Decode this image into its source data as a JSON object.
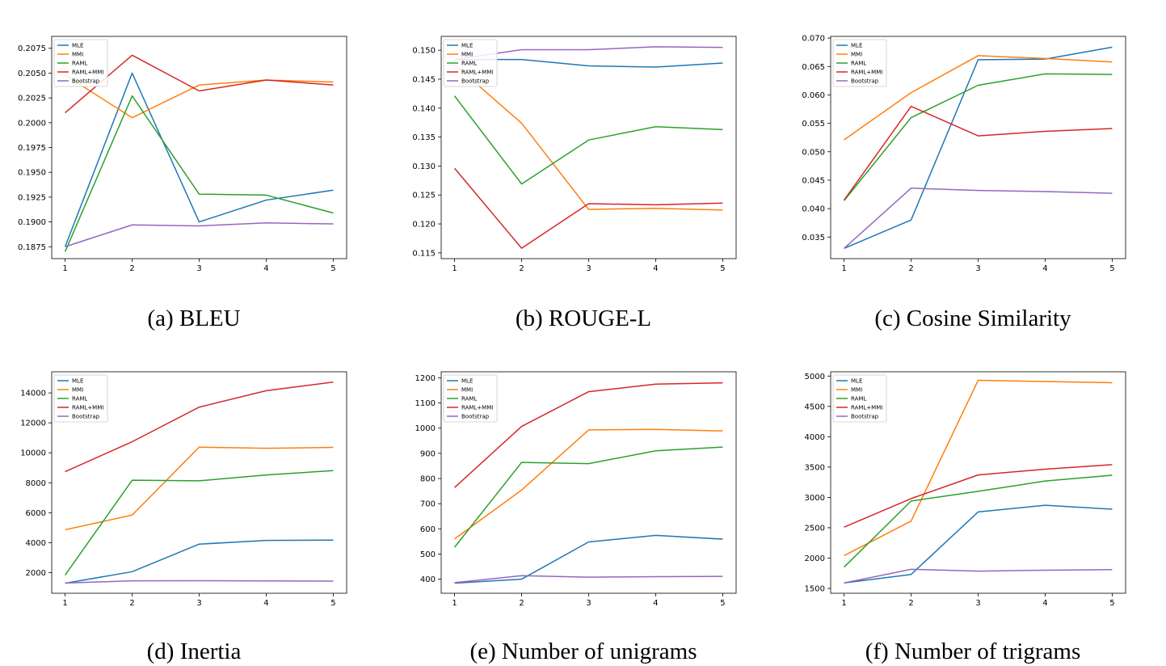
{
  "colors": {
    "MLE": "#1f77b4",
    "MMI": "#ff7f0e",
    "RAML": "#2ca02c",
    "RAML+MMI": "#d62728",
    "Bootstrap": "#9467bd"
  },
  "chart_data": [
    {
      "type": "line",
      "caption": "(a) BLEU",
      "x": [
        1,
        2,
        3,
        4,
        5
      ],
      "xticks": [
        "1",
        "2",
        "3",
        "4",
        "5"
      ],
      "ylim": [
        0.1863,
        0.2087
      ],
      "yticks": [
        0.1875,
        0.19,
        0.1925,
        0.195,
        0.1975,
        0.2,
        0.2025,
        0.205,
        0.2075
      ],
      "yticklabels": [
        "0.1875",
        "0.1900",
        "0.1925",
        "0.1950",
        "0.1975",
        "0.2000",
        "0.2025",
        "0.2050",
        "0.2075"
      ],
      "legend": "top-left",
      "series": [
        {
          "name": "MLE",
          "values": [
            0.1875,
            0.205,
            0.19,
            0.1922,
            0.1932
          ]
        },
        {
          "name": "MMI",
          "values": [
            0.2048,
            0.2005,
            0.2038,
            0.2043,
            0.2041
          ]
        },
        {
          "name": "RAML",
          "values": [
            0.187,
            0.2027,
            0.1928,
            0.1927,
            0.1909
          ]
        },
        {
          "name": "RAML+MMI",
          "values": [
            0.201,
            0.2068,
            0.2032,
            0.2043,
            0.2038
          ]
        },
        {
          "name": "Bootstrap",
          "values": [
            0.1875,
            0.1897,
            0.1896,
            0.1899,
            0.1898
          ]
        }
      ]
    },
    {
      "type": "line",
      "caption": "(b) ROUGE-L",
      "x": [
        1,
        2,
        3,
        4,
        5
      ],
      "xticks": [
        "1",
        "2",
        "3",
        "4",
        "5"
      ],
      "ylim": [
        0.114,
        0.1524
      ],
      "yticks": [
        0.115,
        0.12,
        0.125,
        0.13,
        0.135,
        0.14,
        0.145,
        0.15
      ],
      "yticklabels": [
        "0.115",
        "0.120",
        "0.125",
        "0.130",
        "0.135",
        "0.140",
        "0.145",
        "0.150"
      ],
      "legend": "top-left",
      "series": [
        {
          "name": "MLE",
          "values": [
            0.1484,
            0.1484,
            0.1473,
            0.1471,
            0.1478
          ]
        },
        {
          "name": "MMI",
          "values": [
            0.1475,
            0.1374,
            0.1225,
            0.1227,
            0.1224
          ]
        },
        {
          "name": "RAML",
          "values": [
            0.1421,
            0.1269,
            0.1345,
            0.1368,
            0.1363
          ]
        },
        {
          "name": "RAML+MMI",
          "values": [
            0.1296,
            0.1158,
            0.1235,
            0.1233,
            0.1236
          ]
        },
        {
          "name": "Bootstrap",
          "values": [
            0.1484,
            0.1501,
            0.1501,
            0.1506,
            0.1505
          ]
        }
      ]
    },
    {
      "type": "line",
      "caption": "(c) Cosine Similarity",
      "x": [
        1,
        2,
        3,
        4,
        5
      ],
      "xticks": [
        "1",
        "2",
        "3",
        "4",
        "5"
      ],
      "ylim": [
        0.0312,
        0.0703
      ],
      "yticks": [
        0.035,
        0.04,
        0.045,
        0.05,
        0.055,
        0.06,
        0.065,
        0.07
      ],
      "yticklabels": [
        "0.035",
        "0.040",
        "0.045",
        "0.050",
        "0.055",
        "0.060",
        "0.065",
        "0.070"
      ],
      "legend": "top-left",
      "series": [
        {
          "name": "MLE",
          "values": [
            0.033,
            0.038,
            0.0662,
            0.0663,
            0.0684
          ]
        },
        {
          "name": "MMI",
          "values": [
            0.0521,
            0.0604,
            0.0669,
            0.0664,
            0.0658
          ]
        },
        {
          "name": "RAML",
          "values": [
            0.0414,
            0.056,
            0.0617,
            0.0637,
            0.0636
          ]
        },
        {
          "name": "RAML+MMI",
          "values": [
            0.0415,
            0.058,
            0.0528,
            0.0536,
            0.0541
          ]
        },
        {
          "name": "Bootstrap",
          "values": [
            0.033,
            0.0436,
            0.0432,
            0.043,
            0.0427
          ]
        }
      ]
    },
    {
      "type": "line",
      "caption": "(d) Inertia",
      "x": [
        1,
        2,
        3,
        4,
        5
      ],
      "xticks": [
        "1",
        "2",
        "3",
        "4",
        "5"
      ],
      "ylim": [
        620,
        15410
      ],
      "yticks": [
        2000,
        4000,
        6000,
        8000,
        10000,
        12000,
        14000
      ],
      "yticklabels": [
        "2000",
        "4000",
        "6000",
        "8000",
        "10000",
        "12000",
        "14000"
      ],
      "legend": "top-left",
      "series": [
        {
          "name": "MLE",
          "values": [
            1290,
            2060,
            3900,
            4150,
            4170
          ]
        },
        {
          "name": "MMI",
          "values": [
            4860,
            5840,
            10380,
            10300,
            10360
          ]
        },
        {
          "name": "RAML",
          "values": [
            1830,
            8170,
            8130,
            8520,
            8810
          ]
        },
        {
          "name": "RAML+MMI",
          "values": [
            8740,
            10740,
            13050,
            14150,
            14720
          ]
        },
        {
          "name": "Bootstrap",
          "values": [
            1300,
            1450,
            1460,
            1440,
            1430
          ]
        }
      ]
    },
    {
      "type": "line",
      "caption": "(e) Number of unigrams",
      "x": [
        1,
        2,
        3,
        4,
        5
      ],
      "xticks": [
        "1",
        "2",
        "3",
        "4",
        "5"
      ],
      "ylim": [
        344,
        1224
      ],
      "yticks": [
        400,
        500,
        600,
        700,
        800,
        900,
        1000,
        1100,
        1200
      ],
      "yticklabels": [
        "400",
        "500",
        "600",
        "700",
        "800",
        "900",
        "1000",
        "1100",
        "1200"
      ],
      "legend": "top-left",
      "series": [
        {
          "name": "MLE",
          "values": [
            384,
            400,
            548,
            574,
            559
          ]
        },
        {
          "name": "MMI",
          "values": [
            560,
            754,
            993,
            995,
            989
          ]
        },
        {
          "name": "RAML",
          "values": [
            527,
            864,
            859,
            910,
            925
          ]
        },
        {
          "name": "RAML+MMI",
          "values": [
            764,
            1007,
            1145,
            1175,
            1180
          ]
        },
        {
          "name": "Bootstrap",
          "values": [
            386,
            414,
            408,
            410,
            411
          ]
        }
      ]
    },
    {
      "type": "line",
      "caption": "(f) Number of trigrams",
      "x": [
        1,
        2,
        3,
        4,
        5
      ],
      "xticks": [
        "1",
        "2",
        "3",
        "4",
        "5"
      ],
      "ylim": [
        1420,
        5070
      ],
      "yticks": [
        1500,
        2000,
        2500,
        3000,
        3500,
        4000,
        4500,
        5000
      ],
      "yticklabels": [
        "1500",
        "2000",
        "2500",
        "3000",
        "3500",
        "4000",
        "4500",
        "5000"
      ],
      "legend": "top-left",
      "series": [
        {
          "name": "MLE",
          "values": [
            1590,
            1730,
            2760,
            2870,
            2805
          ]
        },
        {
          "name": "MMI",
          "values": [
            2040,
            2610,
            4930,
            4910,
            4890
          ]
        },
        {
          "name": "RAML",
          "values": [
            1850,
            2940,
            3100,
            3270,
            3365
          ]
        },
        {
          "name": "RAML+MMI",
          "values": [
            2510,
            2980,
            3370,
            3465,
            3540
          ]
        },
        {
          "name": "Bootstrap",
          "values": [
            1590,
            1815,
            1785,
            1800,
            1810
          ]
        }
      ]
    }
  ]
}
